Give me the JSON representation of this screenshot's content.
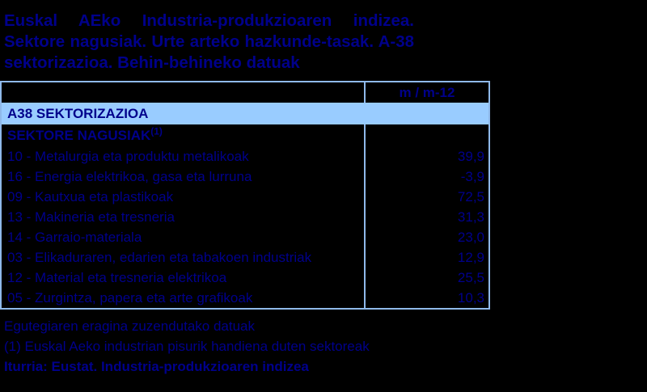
{
  "colors": {
    "background": "#000000",
    "text_navy": "#00008B",
    "section_fill": "#99CCFF",
    "table_border": "#8FB9EA"
  },
  "title": {
    "lines": [
      "Euskal AEko Industria-produkzioaren indizea.",
      "Sektore nagusiak. Urte arteko hazkunde-tasak. A-38",
      "sektorizazioa. Behin-behineko datuak"
    ]
  },
  "table": {
    "value_column_header": "m / m-12",
    "section_header": "A38 SEKTORIZAZIOA",
    "subsection": {
      "label": "SEKTORE NAGUSIAK",
      "footnote_marker": "(1)"
    },
    "rows": [
      {
        "label": "10 - Metalurgia eta produktu metalikoak",
        "value": "39,9"
      },
      {
        "label": "16 - Energia elektrikoa, gasa eta lurruna",
        "value": "-3,9"
      },
      {
        "label": "09 - Kautxua eta plastikoak",
        "value": "72,5"
      },
      {
        "label": "13 - Makineria eta tresneria",
        "value": "31,3"
      },
      {
        "label": "14 - Garraio-materiala",
        "value": "23,0"
      },
      {
        "label": "03 - Elikaduraren, edarien eta tabakoen industriak",
        "value": "12,9"
      },
      {
        "label": "12 - Material eta tresneria elektrikoa",
        "value": "25,5"
      },
      {
        "label": "05 - Zurgintza, papera eta arte grafikoak",
        "value": "10,3"
      }
    ]
  },
  "footnotes": {
    "calendar_note": "Egutegiaren eragina zuzendutako datuak",
    "footnote_1": "(1) Euskal Aeko industrian pisurik handiena duten sektoreak",
    "source": "Iturria: Eustat. Industria-produkzioaren indizea"
  },
  "chart_data": {
    "type": "table",
    "title": "Euskal AEko Industria-produkzioaren indizea. Sektore nagusiak. Urte arteko hazkunde-tasak. A-38 sektorizazioa. Behin-behineko datuak",
    "columns": [
      "",
      "m / m-12"
    ],
    "section": "A38 SEKTORIZAZIOA",
    "subsection": "SEKTORE NAGUSIAK (1)",
    "categories": [
      "10 - Metalurgia eta produktu metalikoak",
      "16 - Energia elektrikoa, gasa eta lurruna",
      "09 - Kautxua eta plastikoak",
      "13 - Makineria eta tresneria",
      "14 - Garraio-materiala",
      "03 - Elikaduraren, edarien eta tabakoen industriak",
      "12 - Material eta tresneria elektrikoa",
      "05 - Zurgintza, papera eta arte grafikoak"
    ],
    "values": [
      39.9,
      -3.9,
      72.5,
      31.3,
      23.0,
      12.9,
      25.5,
      10.3
    ],
    "notes": [
      "Egutegiaren eragina zuzendutako datuak",
      "(1) Euskal Aeko industrian pisurik handiena duten sektoreak",
      "Iturria: Eustat. Industria-produkzioaren indizea"
    ]
  }
}
